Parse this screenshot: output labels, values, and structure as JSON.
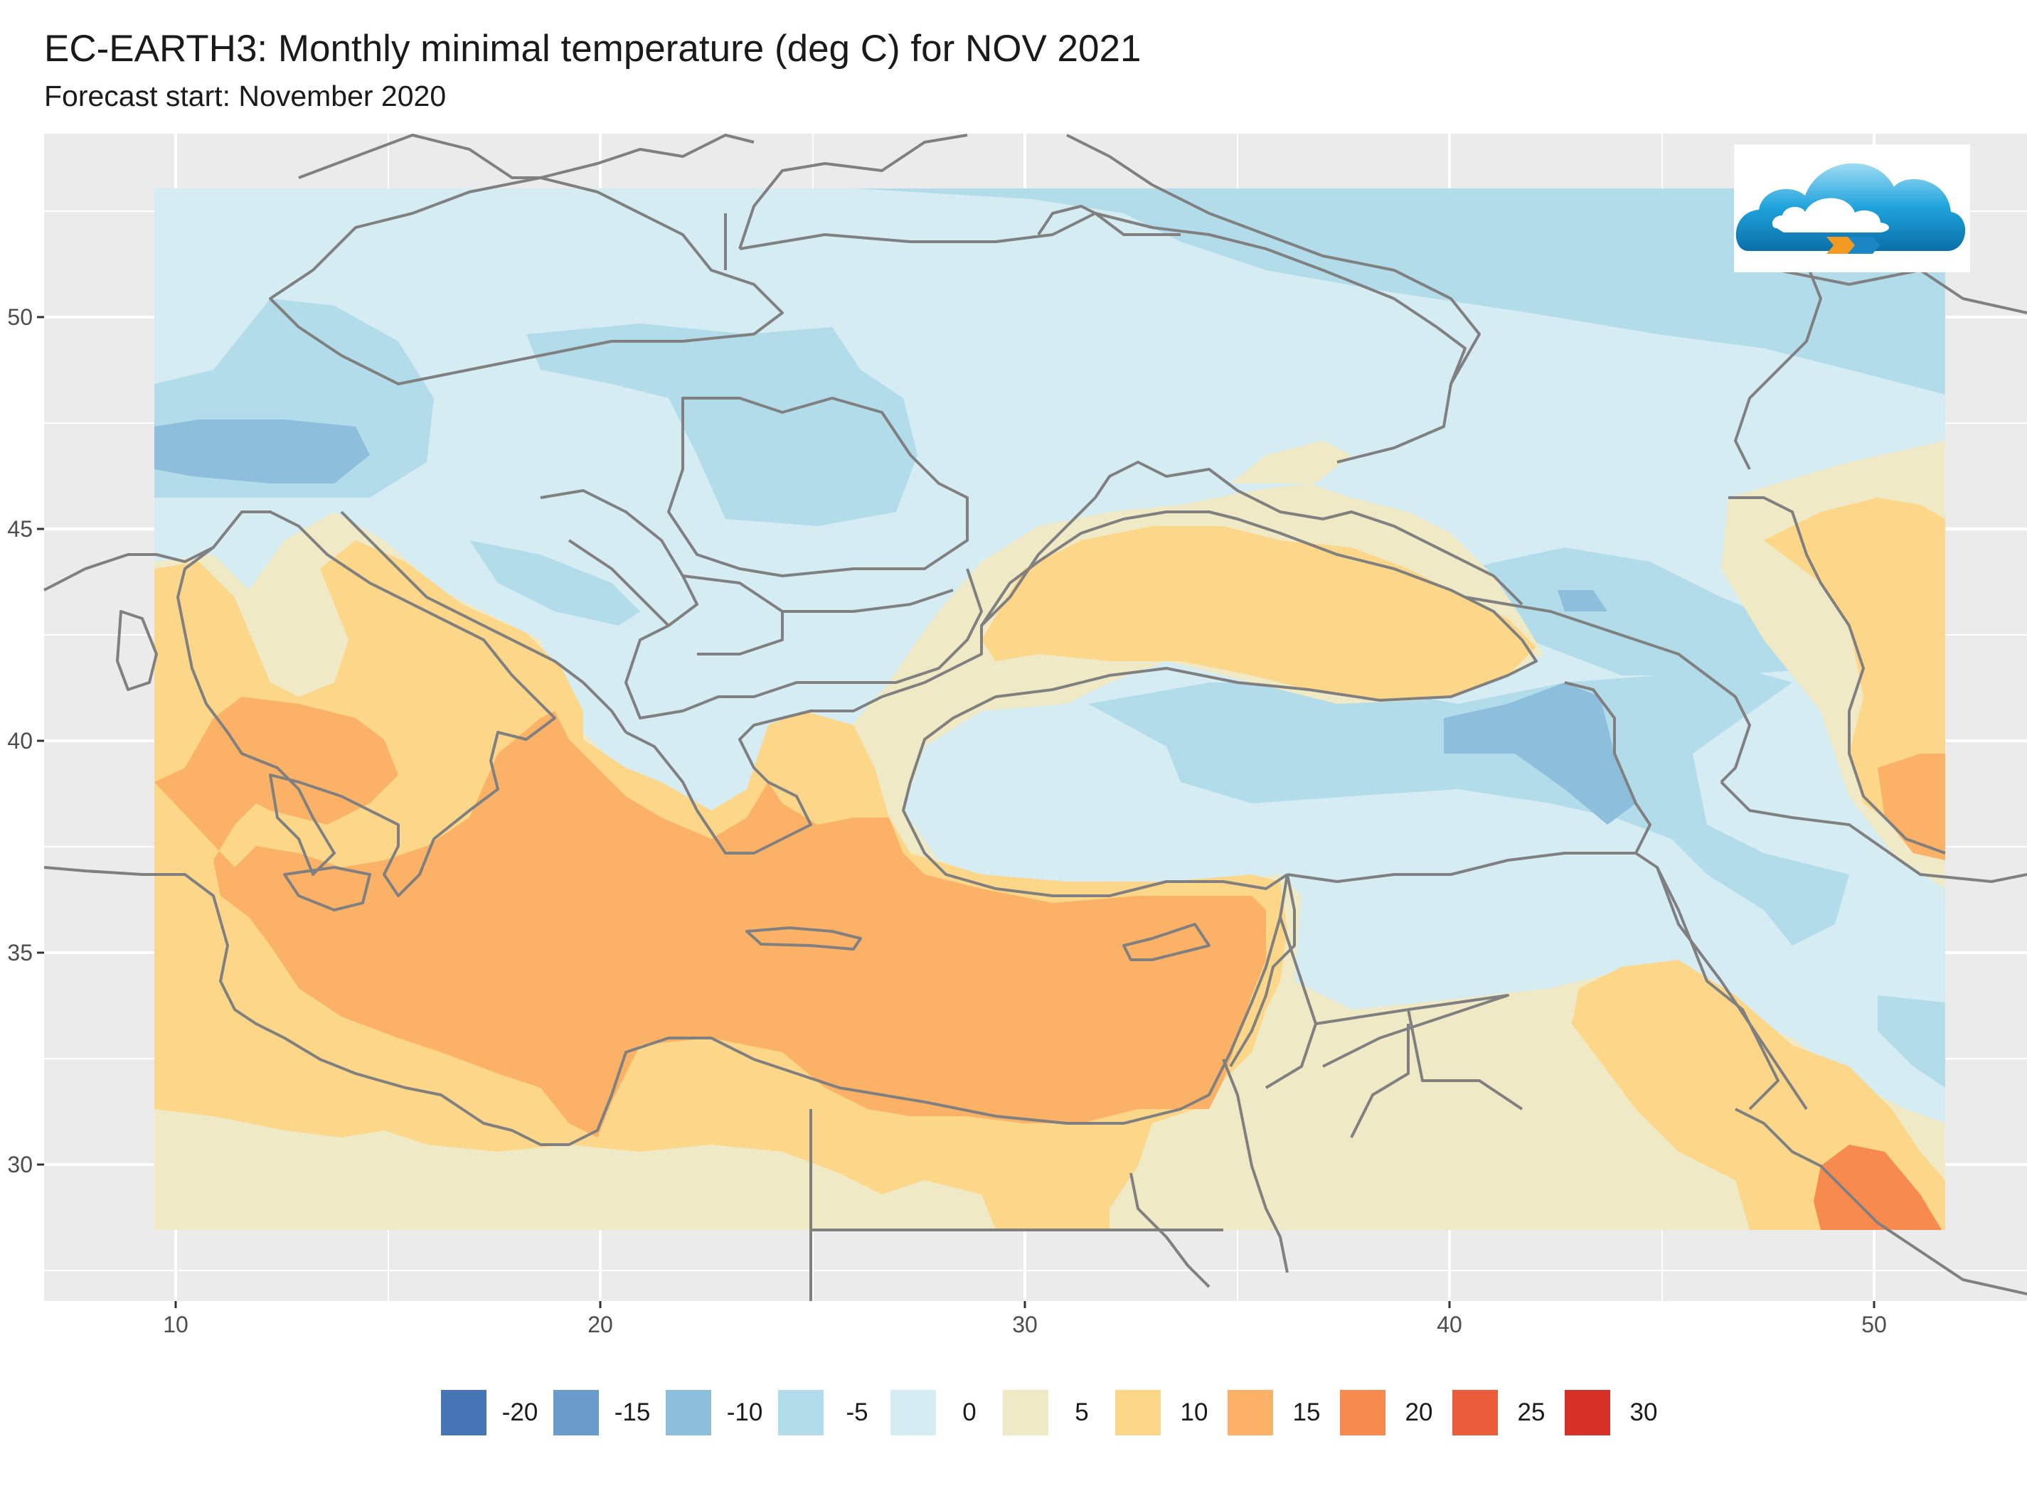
{
  "header": {
    "title": "EC-EARTH3: Monthly minimal temperature (deg C) for NOV 2021",
    "subtitle": "Forecast start: November 2020"
  },
  "axes": {
    "x_ticks": [
      "10",
      "20",
      "30",
      "40",
      "50"
    ],
    "y_ticks": [
      "50",
      "45",
      "40",
      "35",
      "30"
    ]
  },
  "legend": {
    "items": [
      {
        "label": "-20",
        "color": "#4575b4"
      },
      {
        "label": "-15",
        "color": "#6a9ccb"
      },
      {
        "label": "-10",
        "color": "#8dbfdd"
      },
      {
        "label": "-5",
        "color": "#b2dcea"
      },
      {
        "label": "0",
        "color": "#d5ecf3"
      },
      {
        "label": "5",
        "color": "#efe9c6"
      },
      {
        "label": "10",
        "color": "#fdd789"
      },
      {
        "label": "15",
        "color": "#fbb266"
      },
      {
        "label": "20",
        "color": "#f78a4f"
      },
      {
        "label": "25",
        "color": "#eb5c3b"
      },
      {
        "label": "30",
        "color": "#d73027"
      }
    ]
  },
  "map": {
    "lon_range": [
      7,
      54
    ],
    "lat_range": [
      27,
      54
    ],
    "panel_background": "#ebebeb",
    "border_color": "#808080"
  },
  "logo": {
    "icon": "cloud-logo-icon"
  }
}
